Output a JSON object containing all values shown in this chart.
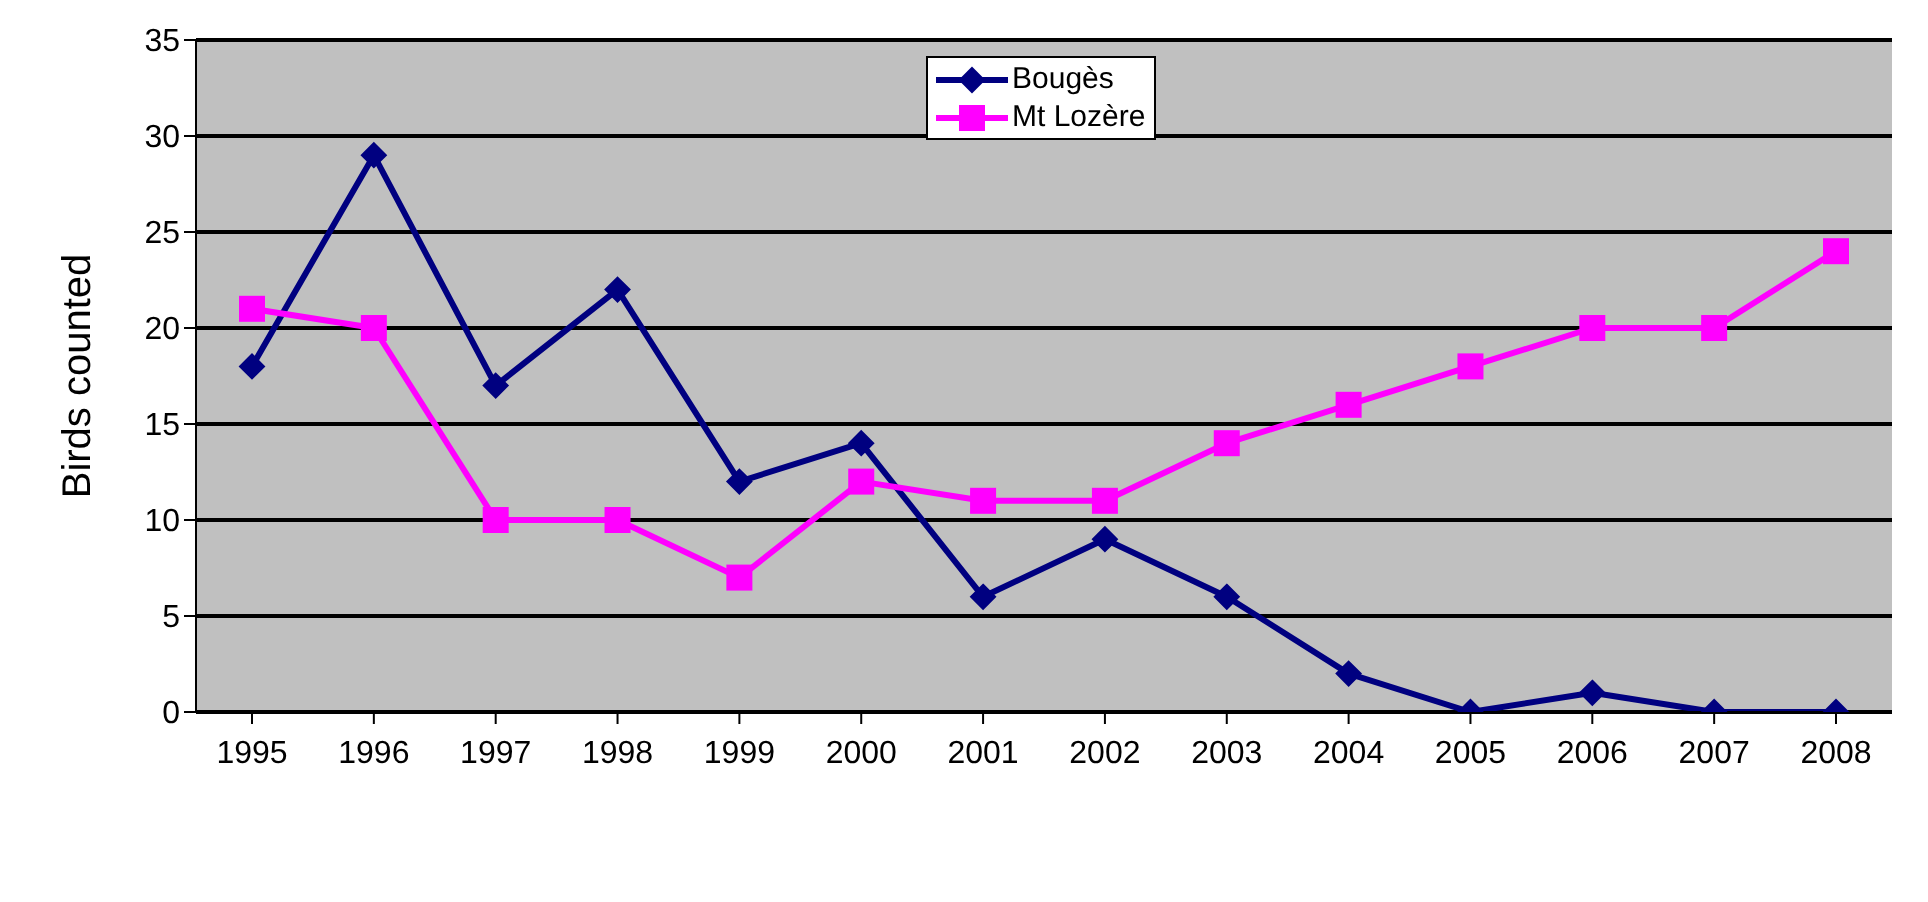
{
  "chart_data": {
    "type": "line",
    "ylabel": "Birds counted",
    "categories": [
      "1995",
      "1996",
      "1997",
      "1998",
      "1999",
      "2000",
      "2001",
      "2002",
      "2003",
      "2004",
      "2005",
      "2006",
      "2007",
      "2008"
    ],
    "series": [
      {
        "name": "Bougès",
        "color": "#000080",
        "marker": "diamond",
        "values": [
          18,
          29,
          17,
          22,
          12,
          14,
          6,
          9,
          6,
          2,
          0,
          1,
          0,
          0
        ]
      },
      {
        "name": "Mt Lozère",
        "color": "#ff00ff",
        "marker": "square",
        "values": [
          21,
          20,
          10,
          10,
          7,
          12,
          11,
          11,
          14,
          16,
          18,
          20,
          20,
          24
        ]
      }
    ],
    "ylim": [
      0,
      35
    ],
    "yticks": [
      0,
      5,
      10,
      15,
      20,
      25,
      30,
      35
    ],
    "grid": "y",
    "legend": "top",
    "line_style": "solid"
  }
}
